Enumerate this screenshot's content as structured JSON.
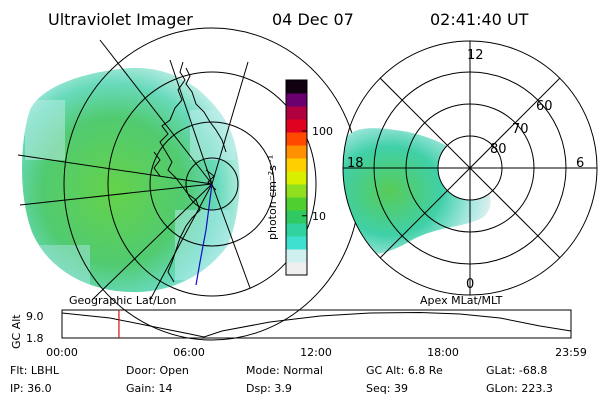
{
  "header": {
    "instrument": "Ultraviolet Imager",
    "date": "04 Dec 07",
    "time": "02:41:40 UT"
  },
  "left_panel": {
    "caption": "Geographic Lat/Lon"
  },
  "right_panel": {
    "caption": "Apex MLat/MLT",
    "lat_labels": [
      "60",
      "70",
      "80"
    ],
    "mlt_labels": {
      "top": "12",
      "left": "18",
      "right": "6",
      "bottom": "0"
    }
  },
  "colorbar": {
    "label": "photon cm⁻²s⁻¹",
    "tick_labels": [
      "100",
      "10"
    ],
    "ticks": [
      100,
      10
    ],
    "range": [
      2,
      400
    ],
    "scale": "log",
    "colors": [
      "#efefef",
      "#d0f0f0",
      "#40e0d0",
      "#30d2a0",
      "#30c860",
      "#50d030",
      "#90e020",
      "#d8f000",
      "#ffd000",
      "#ff9000",
      "#ff4800",
      "#e00020",
      "#b00040",
      "#6a0070",
      "#100010"
    ]
  },
  "altitude_plot": {
    "ylabel": "GC Alt",
    "ytick_labels": [
      "9.0",
      "1.8"
    ],
    "xtick_labels": [
      "00:00",
      "06:00",
      "12:00",
      "18:00",
      "23:59"
    ],
    "current_time": "02:41",
    "marker_color": "#d01010"
  },
  "status": {
    "row1": [
      {
        "label": "Flt:",
        "value": "LBHL"
      },
      {
        "label": "Door:",
        "value": "Open"
      },
      {
        "label": "Mode:",
        "value": "Normal"
      },
      {
        "label": "GC Alt:",
        "value": "6.8 Re"
      },
      {
        "label": "GLat:",
        "value": "-68.8"
      }
    ],
    "row2": [
      {
        "label": "IP:",
        "value": "36.0"
      },
      {
        "label": "Gain:",
        "value": "14"
      },
      {
        "label": "Dsp:",
        "value": "3.9"
      },
      {
        "label": "Seq:",
        "value": "39"
      },
      {
        "label": "GLon:",
        "value": "223.3"
      }
    ]
  }
}
